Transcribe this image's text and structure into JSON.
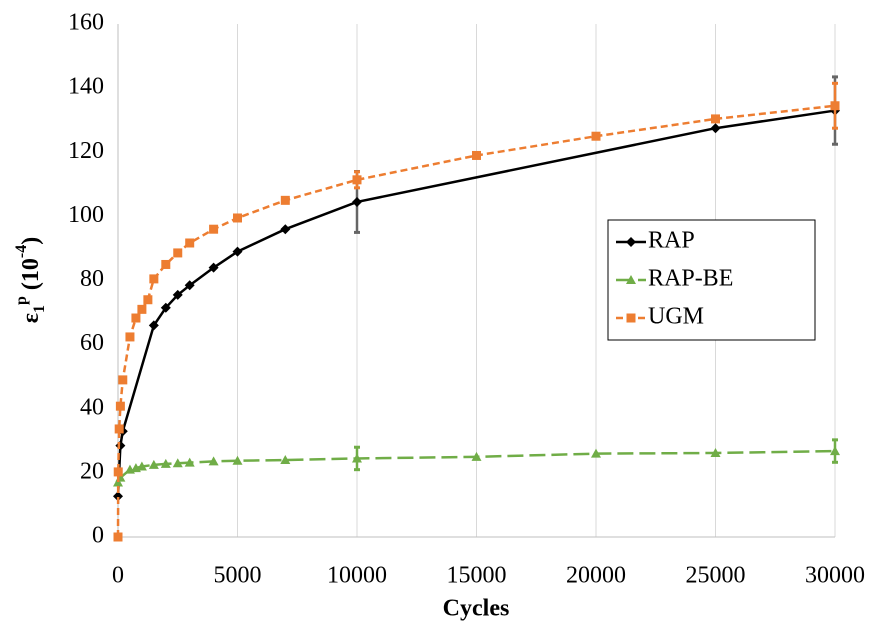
{
  "chart_data": {
    "type": "line",
    "xlabel": "Cycles",
    "ylabel": [
      "ε",
      "1",
      "p",
      " (10",
      "-4",
      ")"
    ],
    "xlim": [
      0,
      30000
    ],
    "xticks": [
      0,
      5000,
      10000,
      15000,
      20000,
      25000,
      30000
    ],
    "ylim": [
      0,
      160
    ],
    "yticks": [
      0,
      20,
      40,
      60,
      80,
      100,
      120,
      140,
      160
    ],
    "grid": "x",
    "legend": "right",
    "series": [
      {
        "name": "RAP",
        "color": "#000000",
        "error_color": "#666666",
        "marker": "diamond",
        "line_style": "solid",
        "x": [
          0,
          100,
          200,
          1500,
          2000,
          2500,
          3000,
          4000,
          5000,
          7000,
          10000,
          25000,
          30000
        ],
        "values": [
          12.7,
          28.5,
          33,
          66,
          71.5,
          75.5,
          78.5,
          84,
          89,
          96,
          104.5,
          127.5,
          133
        ],
        "errors": [
          null,
          null,
          null,
          null,
          null,
          null,
          null,
          null,
          null,
          null,
          9.5,
          null,
          10.5
        ]
      },
      {
        "name": "RAP-BE",
        "color": "#70ad47",
        "error_color": "#70ad47",
        "marker": "triangle",
        "line_style": "long-dash",
        "x": [
          0,
          100,
          500,
          750,
          1000,
          1500,
          2000,
          2500,
          3000,
          4000,
          5000,
          7000,
          10000,
          15000,
          20000,
          25000,
          30000
        ],
        "values": [
          17,
          18.5,
          21,
          21.5,
          22,
          22.5,
          22.8,
          23,
          23.2,
          23.6,
          23.8,
          24,
          24.5,
          25,
          26,
          26.2,
          26.8
        ],
        "errors": [
          null,
          null,
          null,
          null,
          null,
          null,
          null,
          null,
          null,
          null,
          null,
          null,
          3.5,
          null,
          null,
          null,
          3.5
        ]
      },
      {
        "name": "UGM",
        "color": "#ed7d31",
        "error_color": "#ed7d31",
        "marker": "square",
        "line_style": "dash",
        "x": [
          0,
          10,
          50,
          100,
          200,
          500,
          750,
          1000,
          1250,
          1500,
          2000,
          2500,
          3000,
          4000,
          5000,
          7000,
          10000,
          15000,
          20000,
          25000,
          30000
        ],
        "values": [
          0,
          20.3,
          33.7,
          40.8,
          49,
          62.4,
          68.3,
          71,
          74,
          80.5,
          85,
          88.6,
          91.7,
          96,
          99.5,
          105,
          111.4,
          119,
          125,
          130.4,
          134.5
        ],
        "errors": [
          null,
          null,
          null,
          null,
          null,
          null,
          null,
          null,
          null,
          null,
          null,
          null,
          null,
          null,
          null,
          null,
          2.5,
          null,
          null,
          null,
          7
        ]
      }
    ]
  }
}
